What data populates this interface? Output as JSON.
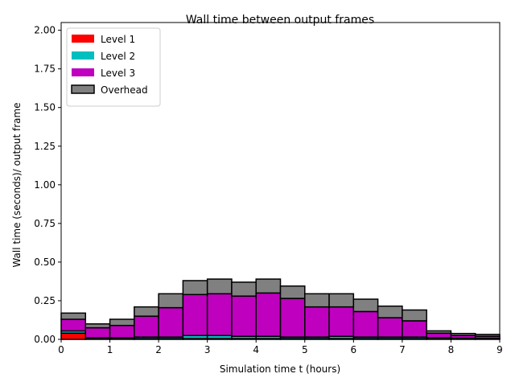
{
  "chart_data": {
    "type": "bar",
    "stacked": true,
    "title": "Wall time between output frames",
    "xlabel": "Simulation time t (hours)",
    "ylabel": "Wall time (seconds)/ output frame",
    "xlim": [
      0,
      9
    ],
    "ylim": [
      0,
      2.05
    ],
    "xticks": [
      "0",
      "1",
      "2",
      "3",
      "4",
      "5",
      "6",
      "7",
      "8",
      "9"
    ],
    "yticks": [
      "0.00",
      "0.25",
      "0.50",
      "0.75",
      "1.00",
      "1.25",
      "1.50",
      "1.75",
      "2.00"
    ],
    "grid": false,
    "legend_position": "top-left",
    "bin_width": 0.5,
    "x": [
      0,
      0.5,
      1,
      1.5,
      2,
      2.5,
      3,
      3.5,
      4,
      4.5,
      5,
      5.5,
      6,
      6.5,
      7,
      7.5,
      8,
      8.5
    ],
    "series": [
      {
        "name": "Level 1",
        "color": "#ff0000",
        "values": [
          0.04,
          0.005,
          0.005,
          0.005,
          0.005,
          0.005,
          0.005,
          0.005,
          0.005,
          0.005,
          0.005,
          0.005,
          0.005,
          0.005,
          0.005,
          0.005,
          0.003,
          0.003
        ]
      },
      {
        "name": "Level 2",
        "color": "#00bfbf",
        "values": [
          0.015,
          0.005,
          0.005,
          0.01,
          0.01,
          0.02,
          0.02,
          0.015,
          0.015,
          0.01,
          0.01,
          0.015,
          0.01,
          0.01,
          0.01,
          0.005,
          0.004,
          0.003
        ]
      },
      {
        "name": "Level 3",
        "color": "#bf00bf",
        "values": [
          0.075,
          0.065,
          0.08,
          0.135,
          0.19,
          0.265,
          0.27,
          0.26,
          0.28,
          0.25,
          0.195,
          0.19,
          0.165,
          0.125,
          0.105,
          0.03,
          0.018,
          0.014
        ]
      },
      {
        "name": "Overhead",
        "color": "#808080",
        "values": [
          0.04,
          0.025,
          0.04,
          0.06,
          0.09,
          0.09,
          0.095,
          0.09,
          0.09,
          0.08,
          0.085,
          0.085,
          0.08,
          0.075,
          0.07,
          0.015,
          0.013,
          0.012
        ]
      }
    ]
  }
}
